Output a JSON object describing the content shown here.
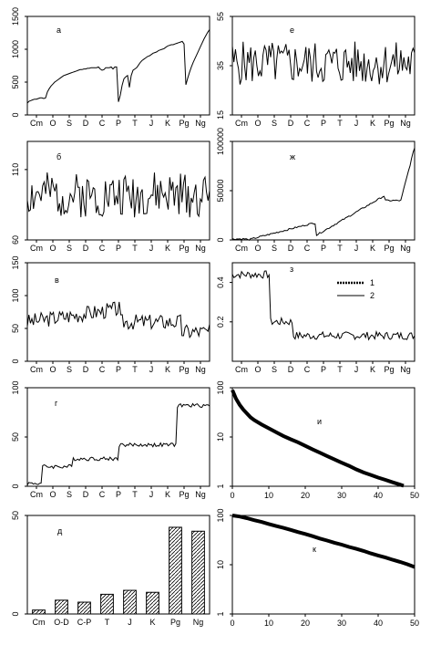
{
  "chart_data": [
    {
      "id": "a",
      "panel_label": "а",
      "type": "line",
      "xlabels": [
        "Cm",
        "O",
        "S",
        "D",
        "C",
        "P",
        "T",
        "J",
        "K",
        "Pg",
        "Ng"
      ],
      "yticks": [
        "0",
        "500",
        "1000",
        "1500"
      ],
      "ylim": [
        0,
        1500
      ],
      "x": [
        0,
        1,
        2,
        3,
        4,
        5,
        6,
        7,
        8,
        9,
        10,
        11,
        12,
        13,
        14,
        15,
        16,
        17,
        18,
        19,
        20,
        21,
        22,
        23,
        24,
        25,
        26,
        27,
        28,
        29,
        30,
        31,
        32,
        33,
        34,
        35,
        36,
        37,
        38,
        39,
        40,
        41,
        42,
        43,
        44,
        45,
        46,
        47,
        48,
        49,
        50,
        51,
        52,
        53,
        54,
        55,
        56,
        57,
        58,
        59,
        60,
        61,
        62,
        63,
        64,
        65,
        66,
        67,
        68,
        69,
        70,
        71,
        72,
        73,
        74,
        75,
        76,
        77,
        78,
        79,
        80,
        81,
        82,
        83,
        84,
        85,
        86,
        87,
        88,
        89,
        90,
        91,
        92,
        93,
        94,
        95,
        96,
        97,
        98,
        99,
        100
      ],
      "y": [
        180,
        210,
        220,
        230,
        240,
        240,
        250,
        260,
        260,
        250,
        260,
        350,
        400,
        440,
        470,
        500,
        520,
        540,
        560,
        580,
        600,
        610,
        620,
        630,
        640,
        650,
        660,
        670,
        680,
        690,
        690,
        700,
        700,
        710,
        710,
        720,
        720,
        720,
        720,
        730,
        700,
        680,
        690,
        720,
        720,
        720,
        730,
        700,
        730,
        730,
        200,
        300,
        450,
        550,
        580,
        600,
        420,
        600,
        680,
        700,
        720,
        760,
        800,
        830,
        850,
        870,
        890,
        900,
        920,
        940,
        950,
        960,
        980,
        990,
        1000,
        1010,
        1030,
        1050,
        1060,
        1070,
        1070,
        1080,
        1090,
        1100,
        1110,
        1120,
        1080,
        460,
        560,
        650,
        730,
        800,
        860,
        920,
        980,
        1040,
        1100,
        1160,
        1210,
        1260,
        1300
      ]
    },
    {
      "id": "b",
      "panel_label": "б",
      "type": "line",
      "xlabels": [
        "Cm",
        "O",
        "S",
        "D",
        "C",
        "P",
        "T",
        "J",
        "K",
        "Pg",
        "Ng"
      ],
      "yticks": [
        "60",
        "110"
      ],
      "ylim": [
        60,
        130
      ],
      "series_seed": 2
    },
    {
      "id": "v",
      "panel_label": "в",
      "type": "line",
      "xlabels": [
        "Cm",
        "O",
        "S",
        "D",
        "C",
        "P",
        "T",
        "J",
        "K",
        "Pg",
        "Ng"
      ],
      "yticks": [
        "0",
        "50",
        "100",
        "150"
      ],
      "ylim": [
        0,
        150
      ],
      "series_seed": 3
    },
    {
      "id": "g",
      "panel_label": "г",
      "type": "line",
      "xlabels": [
        "Cm",
        "O",
        "S",
        "D",
        "C",
        "P",
        "T",
        "J",
        "K",
        "Pg",
        "Ng"
      ],
      "yticks": [
        "0",
        "50",
        "100"
      ],
      "ylim": [
        0,
        100
      ],
      "series_seed": 4
    },
    {
      "id": "d",
      "panel_label": "д",
      "type": "bar",
      "categories": [
        "Cm",
        "O-D",
        "C-P",
        "T",
        "J",
        "K",
        "Pg",
        "Ng"
      ],
      "values": [
        2,
        7,
        6,
        10,
        12,
        11,
        44,
        42
      ],
      "yticks": [
        "0",
        "50"
      ],
      "ylim": [
        0,
        50
      ]
    },
    {
      "id": "e",
      "panel_label": "е",
      "type": "line",
      "xlabels": [
        "Cm",
        "O",
        "S",
        "D",
        "C",
        "P",
        "T",
        "J",
        "K",
        "Pg",
        "Ng"
      ],
      "yticks": [
        "15",
        "35",
        "55"
      ],
      "ylim": [
        15,
        55
      ],
      "series_seed": 5
    },
    {
      "id": "zh",
      "panel_label": "ж",
      "type": "line",
      "xlabels": [
        "Cm",
        "O",
        "S",
        "D",
        "C",
        "P",
        "T",
        "J",
        "K",
        "Pg",
        "Ng"
      ],
      "yticks": [
        "0",
        "50000",
        "100000"
      ],
      "ylim": [
        0,
        100000
      ],
      "series_seed": 6
    },
    {
      "id": "z",
      "panel_label": "з",
      "type": "line",
      "xlabels": [
        "Cm",
        "O",
        "S",
        "D",
        "C",
        "P",
        "T",
        "J",
        "K",
        "Pg",
        "Ng"
      ],
      "yticks": [
        "0.2",
        "0.4"
      ],
      "ylim": [
        0,
        0.5
      ],
      "legend": [
        "1",
        "2"
      ],
      "series_seed": 7
    },
    {
      "id": "i",
      "panel_label": "и",
      "type": "line",
      "yscale": "log",
      "xlim": [
        0,
        50
      ],
      "xticks": [
        "0",
        "10",
        "20",
        "30",
        "40",
        "50"
      ],
      "yticks": [
        "1",
        "10",
        "100"
      ],
      "ylim": [
        1,
        100
      ],
      "x": [
        0,
        1,
        2,
        3,
        4,
        5,
        6,
        8,
        10,
        12,
        14,
        16,
        18,
        20,
        22,
        24,
        26,
        28,
        30,
        32,
        34,
        36,
        38,
        40,
        42,
        44,
        46,
        47
      ],
      "y": [
        90,
        60,
        45,
        36,
        30,
        25,
        22,
        18,
        15,
        12.5,
        10.5,
        9,
        7.8,
        6.6,
        5.6,
        4.8,
        4.1,
        3.5,
        3.0,
        2.6,
        2.2,
        1.9,
        1.7,
        1.5,
        1.35,
        1.2,
        1.08,
        1.02
      ]
    },
    {
      "id": "k",
      "panel_label": "к",
      "type": "line",
      "yscale": "log",
      "xlim": [
        0,
        50
      ],
      "xticks": [
        "0",
        "10",
        "20",
        "30",
        "40",
        "50"
      ],
      "yticks": [
        "1",
        "10",
        "100"
      ],
      "ylim": [
        1,
        100
      ],
      "x": [
        0,
        2,
        4,
        6,
        8,
        10,
        12,
        14,
        16,
        18,
        20,
        22,
        24,
        26,
        28,
        30,
        32,
        34,
        36,
        38,
        40,
        42,
        44,
        46,
        48,
        50
      ],
      "y": [
        100,
        95,
        88,
        80,
        74,
        67,
        61,
        56,
        51,
        46,
        42,
        38,
        34,
        31,
        28,
        25.5,
        23,
        21,
        19,
        17,
        15.4,
        14,
        12.6,
        11.4,
        10.2,
        9
      ]
    }
  ]
}
